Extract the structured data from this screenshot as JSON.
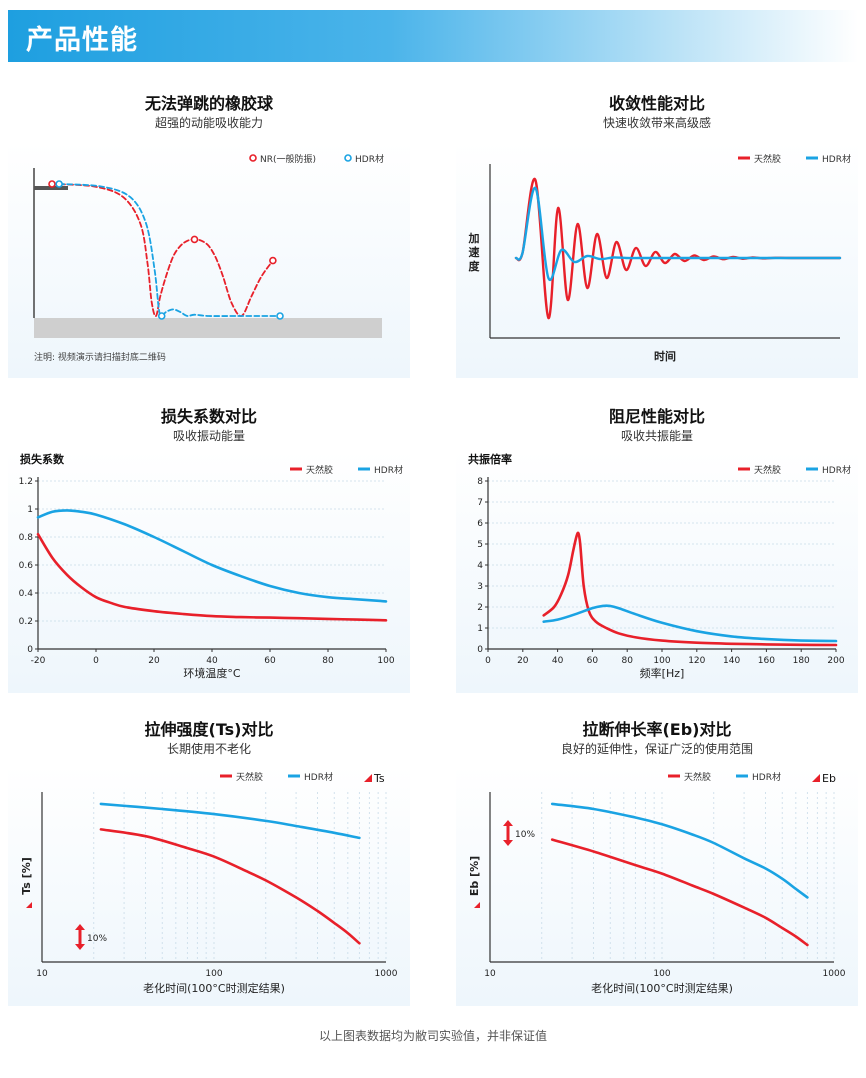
{
  "header": {
    "title": "产品性能"
  },
  "footer": {
    "note": "以上图表数据均为敝司实验值，并非保证值"
  },
  "legend": {
    "natural": "天然胶",
    "hdr": "HDR材"
  },
  "colors": {
    "red": "#e8202a",
    "blue": "#1aa3e3",
    "grid": "#c8dbe8"
  },
  "sections": {
    "bounce": {
      "title": "无法弹跳的橡胶球",
      "subtitle": "超强的动能吸收能力",
      "legend_nr": "NR(一般防振)",
      "legend_hdr": "HDR材",
      "note": "注明: 视频演示请扫描封底二维码"
    },
    "convergence": {
      "title": "收敛性能对比",
      "subtitle": "快速收敛带来高级感",
      "ylabel": "加速度",
      "xlabel": "时间"
    },
    "loss": {
      "title": "损失系数对比",
      "subtitle": "吸收振动能量"
    },
    "damping": {
      "title": "阻尼性能对比",
      "subtitle": "吸收共振能量"
    },
    "tensile": {
      "title": "拉伸强度(Ts)对比",
      "subtitle": "长期使用不老化",
      "corner": "Ts",
      "scale_label": "10%"
    },
    "elongation": {
      "title": "拉断伸长率(Eb)对比",
      "subtitle": "良好的延伸性，保证广泛的使用范围",
      "corner": "Eb",
      "scale_label": "10%"
    }
  },
  "chart_data": [
    {
      "id": "bounce",
      "type": "line",
      "series": [
        {
          "name": "NR(一般防振)",
          "x": [
            0.0,
            0.3,
            0.5,
            0.62,
            0.67,
            0.7,
            0.73,
            0.76,
            0.8,
            0.85,
            0.9,
            0.95,
            1.0,
            1.05,
            1.1,
            1.15,
            1.2,
            1.26,
            1.33,
            1.4,
            1.47,
            1.55
          ],
          "y": [
            1.0,
            0.98,
            0.9,
            0.7,
            0.4,
            0.1,
            0.0,
            0.15,
            0.3,
            0.45,
            0.53,
            0.57,
            0.58,
            0.57,
            0.53,
            0.44,
            0.3,
            0.1,
            0.0,
            0.15,
            0.3,
            0.42
          ]
        },
        {
          "name": "HDR材",
          "x": [
            0.05,
            0.35,
            0.55,
            0.66,
            0.72,
            0.75,
            0.77,
            0.8,
            0.85,
            0.9,
            0.95,
            1.0,
            1.1,
            1.3,
            1.5,
            1.6
          ],
          "y": [
            1.0,
            0.98,
            0.9,
            0.7,
            0.35,
            0.05,
            0.0,
            0.03,
            0.05,
            0.03,
            0.0,
            0.01,
            0.0,
            0.0,
            0.0,
            0.0
          ]
        }
      ]
    },
    {
      "id": "convergence",
      "type": "line",
      "xlabel": "时间",
      "ylabel": "加速度",
      "series": [
        {
          "name": "天然胶",
          "x": [
            0.0,
            0.02,
            0.06,
            0.1,
            0.13,
            0.16,
            0.19,
            0.22,
            0.25,
            0.28,
            0.31,
            0.34,
            0.37,
            0.4,
            0.43,
            0.46,
            0.49,
            0.52,
            0.55,
            0.58,
            0.61,
            0.64,
            0.67,
            0.7,
            0.73,
            0.76,
            0.8,
            0.85,
            1.0
          ],
          "y": [
            0.0,
            0.05,
            0.78,
            -0.6,
            0.5,
            -0.42,
            0.34,
            -0.3,
            0.24,
            -0.2,
            0.16,
            -0.12,
            0.1,
            -0.08,
            0.06,
            -0.05,
            0.04,
            -0.03,
            0.025,
            -0.02,
            0.015,
            -0.012,
            0.01,
            -0.008,
            0.006,
            -0.004,
            0.002,
            0.0,
            0.0
          ]
        },
        {
          "name": "HDR材",
          "x": [
            0.0,
            0.02,
            0.06,
            0.1,
            0.14,
            0.18,
            0.22,
            0.26,
            0.3,
            0.34,
            0.38,
            0.45,
            1.0
          ],
          "y": [
            0.0,
            0.05,
            0.7,
            -0.2,
            0.08,
            -0.04,
            0.02,
            -0.01,
            0.005,
            0.0,
            0.0,
            0.0,
            0.0
          ]
        }
      ]
    },
    {
      "id": "loss",
      "type": "line",
      "title": "",
      "xlabel": "环境温度°C",
      "ylabel": "损失系数",
      "xlim": [
        -20,
        100
      ],
      "ylim": [
        0,
        1.2
      ],
      "xticks": [
        -20,
        0,
        20,
        40,
        60,
        80,
        100
      ],
      "yticks": [
        0,
        0.2,
        0.4,
        0.6,
        0.8,
        1.0,
        1.2
      ],
      "series": [
        {
          "name": "天然胶",
          "x": [
            -20,
            -15,
            -10,
            -5,
            0,
            5,
            10,
            20,
            30,
            40,
            50,
            60,
            70,
            80,
            90,
            100
          ],
          "y": [
            0.82,
            0.65,
            0.53,
            0.44,
            0.37,
            0.33,
            0.3,
            0.27,
            0.25,
            0.235,
            0.228,
            0.224,
            0.22,
            0.215,
            0.21,
            0.205
          ]
        },
        {
          "name": "HDR材",
          "x": [
            -20,
            -15,
            -10,
            -5,
            0,
            10,
            20,
            30,
            40,
            50,
            60,
            70,
            80,
            90,
            100
          ],
          "y": [
            0.94,
            0.98,
            0.99,
            0.98,
            0.96,
            0.89,
            0.8,
            0.7,
            0.6,
            0.52,
            0.45,
            0.4,
            0.37,
            0.355,
            0.34
          ]
        }
      ]
    },
    {
      "id": "damping",
      "type": "line",
      "xlabel": "频率[Hz]",
      "ylabel": "共振倍率",
      "xlim": [
        0,
        200
      ],
      "ylim": [
        0,
        8
      ],
      "xticks": [
        0,
        20,
        40,
        60,
        80,
        100,
        120,
        140,
        160,
        180,
        200
      ],
      "yticks": [
        0,
        1,
        2,
        3,
        4,
        5,
        6,
        7,
        8
      ],
      "series": [
        {
          "name": "天然胶",
          "x": [
            32,
            38,
            42,
            46,
            49,
            51,
            52,
            53,
            55,
            58,
            62,
            68,
            75,
            85,
            100,
            120,
            140,
            160,
            180,
            200
          ],
          "y": [
            1.6,
            2.0,
            2.6,
            3.5,
            4.7,
            5.4,
            5.5,
            5.0,
            3.0,
            1.8,
            1.3,
            1.0,
            0.75,
            0.55,
            0.4,
            0.3,
            0.25,
            0.22,
            0.2,
            0.19
          ]
        },
        {
          "name": "HDR材",
          "x": [
            32,
            40,
            50,
            60,
            66,
            70,
            75,
            85,
            100,
            120,
            140,
            160,
            180,
            200
          ],
          "y": [
            1.3,
            1.4,
            1.65,
            1.95,
            2.05,
            2.05,
            1.95,
            1.65,
            1.25,
            0.85,
            0.6,
            0.47,
            0.4,
            0.38
          ]
        }
      ]
    },
    {
      "id": "tensile",
      "type": "line",
      "xlabel": "老化时间(100°C时测定结果)",
      "ylabel": "Ts [%]",
      "xscale": "log",
      "xlim": [
        10,
        1000
      ],
      "xticks": [
        10,
        100,
        1000
      ],
      "series": [
        {
          "name": "天然胶",
          "x": [
            22,
            40,
            70,
            100,
            150,
            200,
            300,
            400,
            500,
            600,
            700
          ],
          "y": [
            0.78,
            0.74,
            0.67,
            0.62,
            0.54,
            0.48,
            0.38,
            0.3,
            0.23,
            0.17,
            0.11
          ]
        },
        {
          "name": "HDR材",
          "x": [
            22,
            50,
            100,
            200,
            300,
            500,
            700
          ],
          "y": [
            0.93,
            0.9,
            0.87,
            0.83,
            0.8,
            0.76,
            0.73
          ]
        }
      ]
    },
    {
      "id": "elongation",
      "type": "line",
      "xlabel": "老化时间(100°C时测定结果)",
      "ylabel": "Eb [%]",
      "xscale": "log",
      "xlim": [
        10,
        1000
      ],
      "xticks": [
        10,
        100,
        1000
      ],
      "series": [
        {
          "name": "天然胶",
          "x": [
            23,
            40,
            70,
            100,
            150,
            200,
            300,
            400,
            500,
            600,
            700
          ],
          "y": [
            0.72,
            0.65,
            0.57,
            0.52,
            0.45,
            0.4,
            0.32,
            0.26,
            0.2,
            0.15,
            0.1
          ]
        },
        {
          "name": "HDR材",
          "x": [
            23,
            40,
            70,
            100,
            150,
            200,
            300,
            400,
            500,
            600,
            700
          ],
          "y": [
            0.93,
            0.9,
            0.85,
            0.81,
            0.75,
            0.7,
            0.61,
            0.55,
            0.49,
            0.43,
            0.38
          ]
        }
      ]
    }
  ]
}
